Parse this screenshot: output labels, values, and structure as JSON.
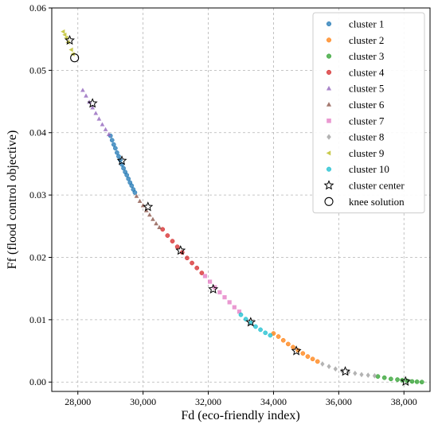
{
  "chart_data": {
    "type": "scatter",
    "xlabel": "Fd (eco-friendly index)",
    "ylabel": "Ff (flood control objective)",
    "xlim": [
      27200,
      38800
    ],
    "ylim": [
      -0.0015,
      0.06
    ],
    "x_ticks": [
      28000,
      30000,
      32000,
      34000,
      36000,
      38000
    ],
    "x_tick_labels": [
      "28,000",
      "30,000",
      "32,000",
      "34,000",
      "36,000",
      "38,000"
    ],
    "y_ticks": [
      0.0,
      0.01,
      0.02,
      0.03,
      0.04,
      0.05,
      0.06
    ],
    "y_tick_labels": [
      "0.00",
      "0.01",
      "0.02",
      "0.03",
      "0.04",
      "0.05",
      "0.06"
    ],
    "grid": true,
    "legend_position": "top-right",
    "series": [
      {
        "name": "cluster 1",
        "color": "#1f77b4",
        "marker": "circle",
        "x": [
          29000,
          29050,
          29100,
          29150,
          29200,
          29250,
          29300,
          29350,
          29400,
          29450,
          29500,
          29550,
          29600,
          29650,
          29700,
          29750
        ],
        "y": [
          0.0395,
          0.0388,
          0.0381,
          0.0375,
          0.0368,
          0.0362,
          0.0356,
          0.0349,
          0.0343,
          0.0337,
          0.0332,
          0.0326,
          0.032,
          0.0315,
          0.0309,
          0.0304
        ]
      },
      {
        "name": "cluster 2",
        "color": "#ff7f0e",
        "marker": "circle",
        "x": [
          34000,
          34150,
          34300,
          34450,
          34600,
          34750,
          34900,
          35050,
          35200,
          35350
        ],
        "y": [
          0.0078,
          0.0073,
          0.0067,
          0.0061,
          0.0056,
          0.0051,
          0.0046,
          0.0041,
          0.0037,
          0.0033
        ]
      },
      {
        "name": "cluster 3",
        "color": "#2ca02c",
        "marker": "circle",
        "x": [
          37200,
          37400,
          37600,
          37800,
          37950,
          38100,
          38250,
          38400,
          38550
        ],
        "y": [
          0.0009,
          0.0007,
          0.0005,
          0.0004,
          0.0003,
          0.0002,
          0.0001,
          5e-05,
          0.0
        ]
      },
      {
        "name": "cluster 4",
        "color": "#d62728",
        "marker": "circle",
        "x": [
          30600,
          30750,
          30900,
          31050,
          31200,
          31350,
          31500,
          31650,
          31800
        ],
        "y": [
          0.0245,
          0.0235,
          0.0226,
          0.0217,
          0.0208,
          0.0199,
          0.0191,
          0.0183,
          0.0175
        ]
      },
      {
        "name": "cluster 5",
        "color": "#9467bd",
        "marker": "triangle-up",
        "x": [
          28150,
          28250,
          28350,
          28450,
          28550,
          28650,
          28750,
          28850,
          28950
        ],
        "y": [
          0.0468,
          0.0459,
          0.0449,
          0.044,
          0.0431,
          0.0422,
          0.0413,
          0.0405,
          0.0397
        ]
      },
      {
        "name": "cluster 6",
        "color": "#8c564b",
        "marker": "triangle-up",
        "x": [
          29800,
          29900,
          30000,
          30100,
          30200,
          30300,
          30400,
          30500
        ],
        "y": [
          0.0298,
          0.029,
          0.0283,
          0.0275,
          0.0268,
          0.0261,
          0.0254,
          0.0248
        ]
      },
      {
        "name": "cluster 7",
        "color": "#e377c2",
        "marker": "square",
        "x": [
          31900,
          32050,
          32200,
          32350,
          32500,
          32650,
          32800,
          32950
        ],
        "y": [
          0.017,
          0.0161,
          0.0152,
          0.0144,
          0.0136,
          0.0128,
          0.012,
          0.0113
        ]
      },
      {
        "name": "cluster 8",
        "color": "#a0a0a0",
        "marker": "diamond",
        "x": [
          35500,
          35700,
          35900,
          36100,
          36300,
          36500,
          36700,
          36900,
          37100
        ],
        "y": [
          0.0029,
          0.0025,
          0.0021,
          0.0018,
          0.0016,
          0.0014,
          0.0012,
          0.0011,
          0.001
        ]
      },
      {
        "name": "cluster 9",
        "color": "#bcbd22",
        "marker": "triangle-left",
        "x": [
          27550,
          27600,
          27650,
          27700,
          27800,
          27850
        ],
        "y": [
          0.0562,
          0.0557,
          0.0552,
          0.0545,
          0.0533,
          0.0526
        ]
      },
      {
        "name": "cluster 10",
        "color": "#17becf",
        "marker": "circle",
        "x": [
          33000,
          33150,
          33300,
          33450,
          33600,
          33750,
          33900
        ],
        "y": [
          0.0108,
          0.0101,
          0.0095,
          0.0089,
          0.0084,
          0.0079,
          0.0075
        ]
      }
    ],
    "cluster_centers": {
      "name": "cluster center",
      "marker": "star",
      "x": [
        27750,
        28450,
        29350,
        30150,
        31150,
        32150,
        33300,
        34700,
        36200,
        38050
      ],
      "y": [
        0.0548,
        0.0447,
        0.0355,
        0.0281,
        0.0211,
        0.0149,
        0.0096,
        0.005,
        0.0017,
        0.0001
      ]
    },
    "knee_solution": {
      "name": "knee solution",
      "marker": "circle-open",
      "x": [
        27900
      ],
      "y": [
        0.052
      ]
    }
  }
}
